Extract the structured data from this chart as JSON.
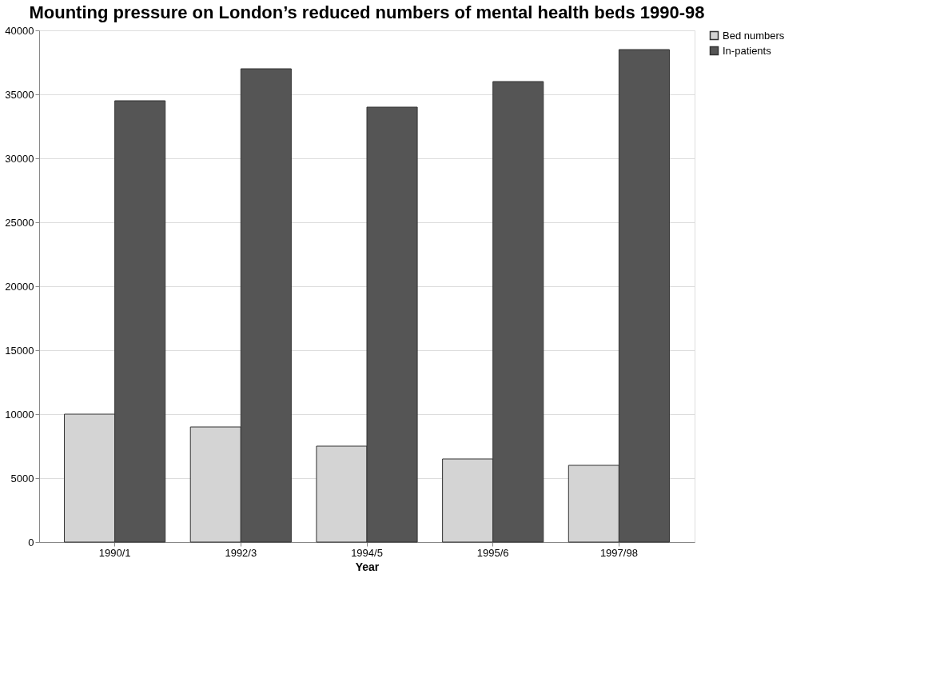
{
  "chart_data": {
    "type": "bar",
    "title": "Mounting pressure on London’s reduced numbers of mental health beds 1990-98",
    "xlabel": "Year",
    "categories": [
      "1990/1",
      "1992/3",
      "1994/5",
      "1995/6",
      "1997/98"
    ],
    "series": [
      {
        "name": "Bed numbers",
        "color": "#d4d4d4",
        "values": [
          10000,
          9000,
          7500,
          6500,
          6000
        ]
      },
      {
        "name": "In-patients",
        "color": "#555555",
        "values": [
          34500,
          37000,
          34000,
          36000,
          38500
        ]
      }
    ],
    "ylim": [
      0,
      40000
    ],
    "yticks": [
      0,
      5000,
      10000,
      15000,
      20000,
      25000,
      30000,
      35000,
      40000
    ],
    "grid": "y",
    "legend": "right"
  }
}
